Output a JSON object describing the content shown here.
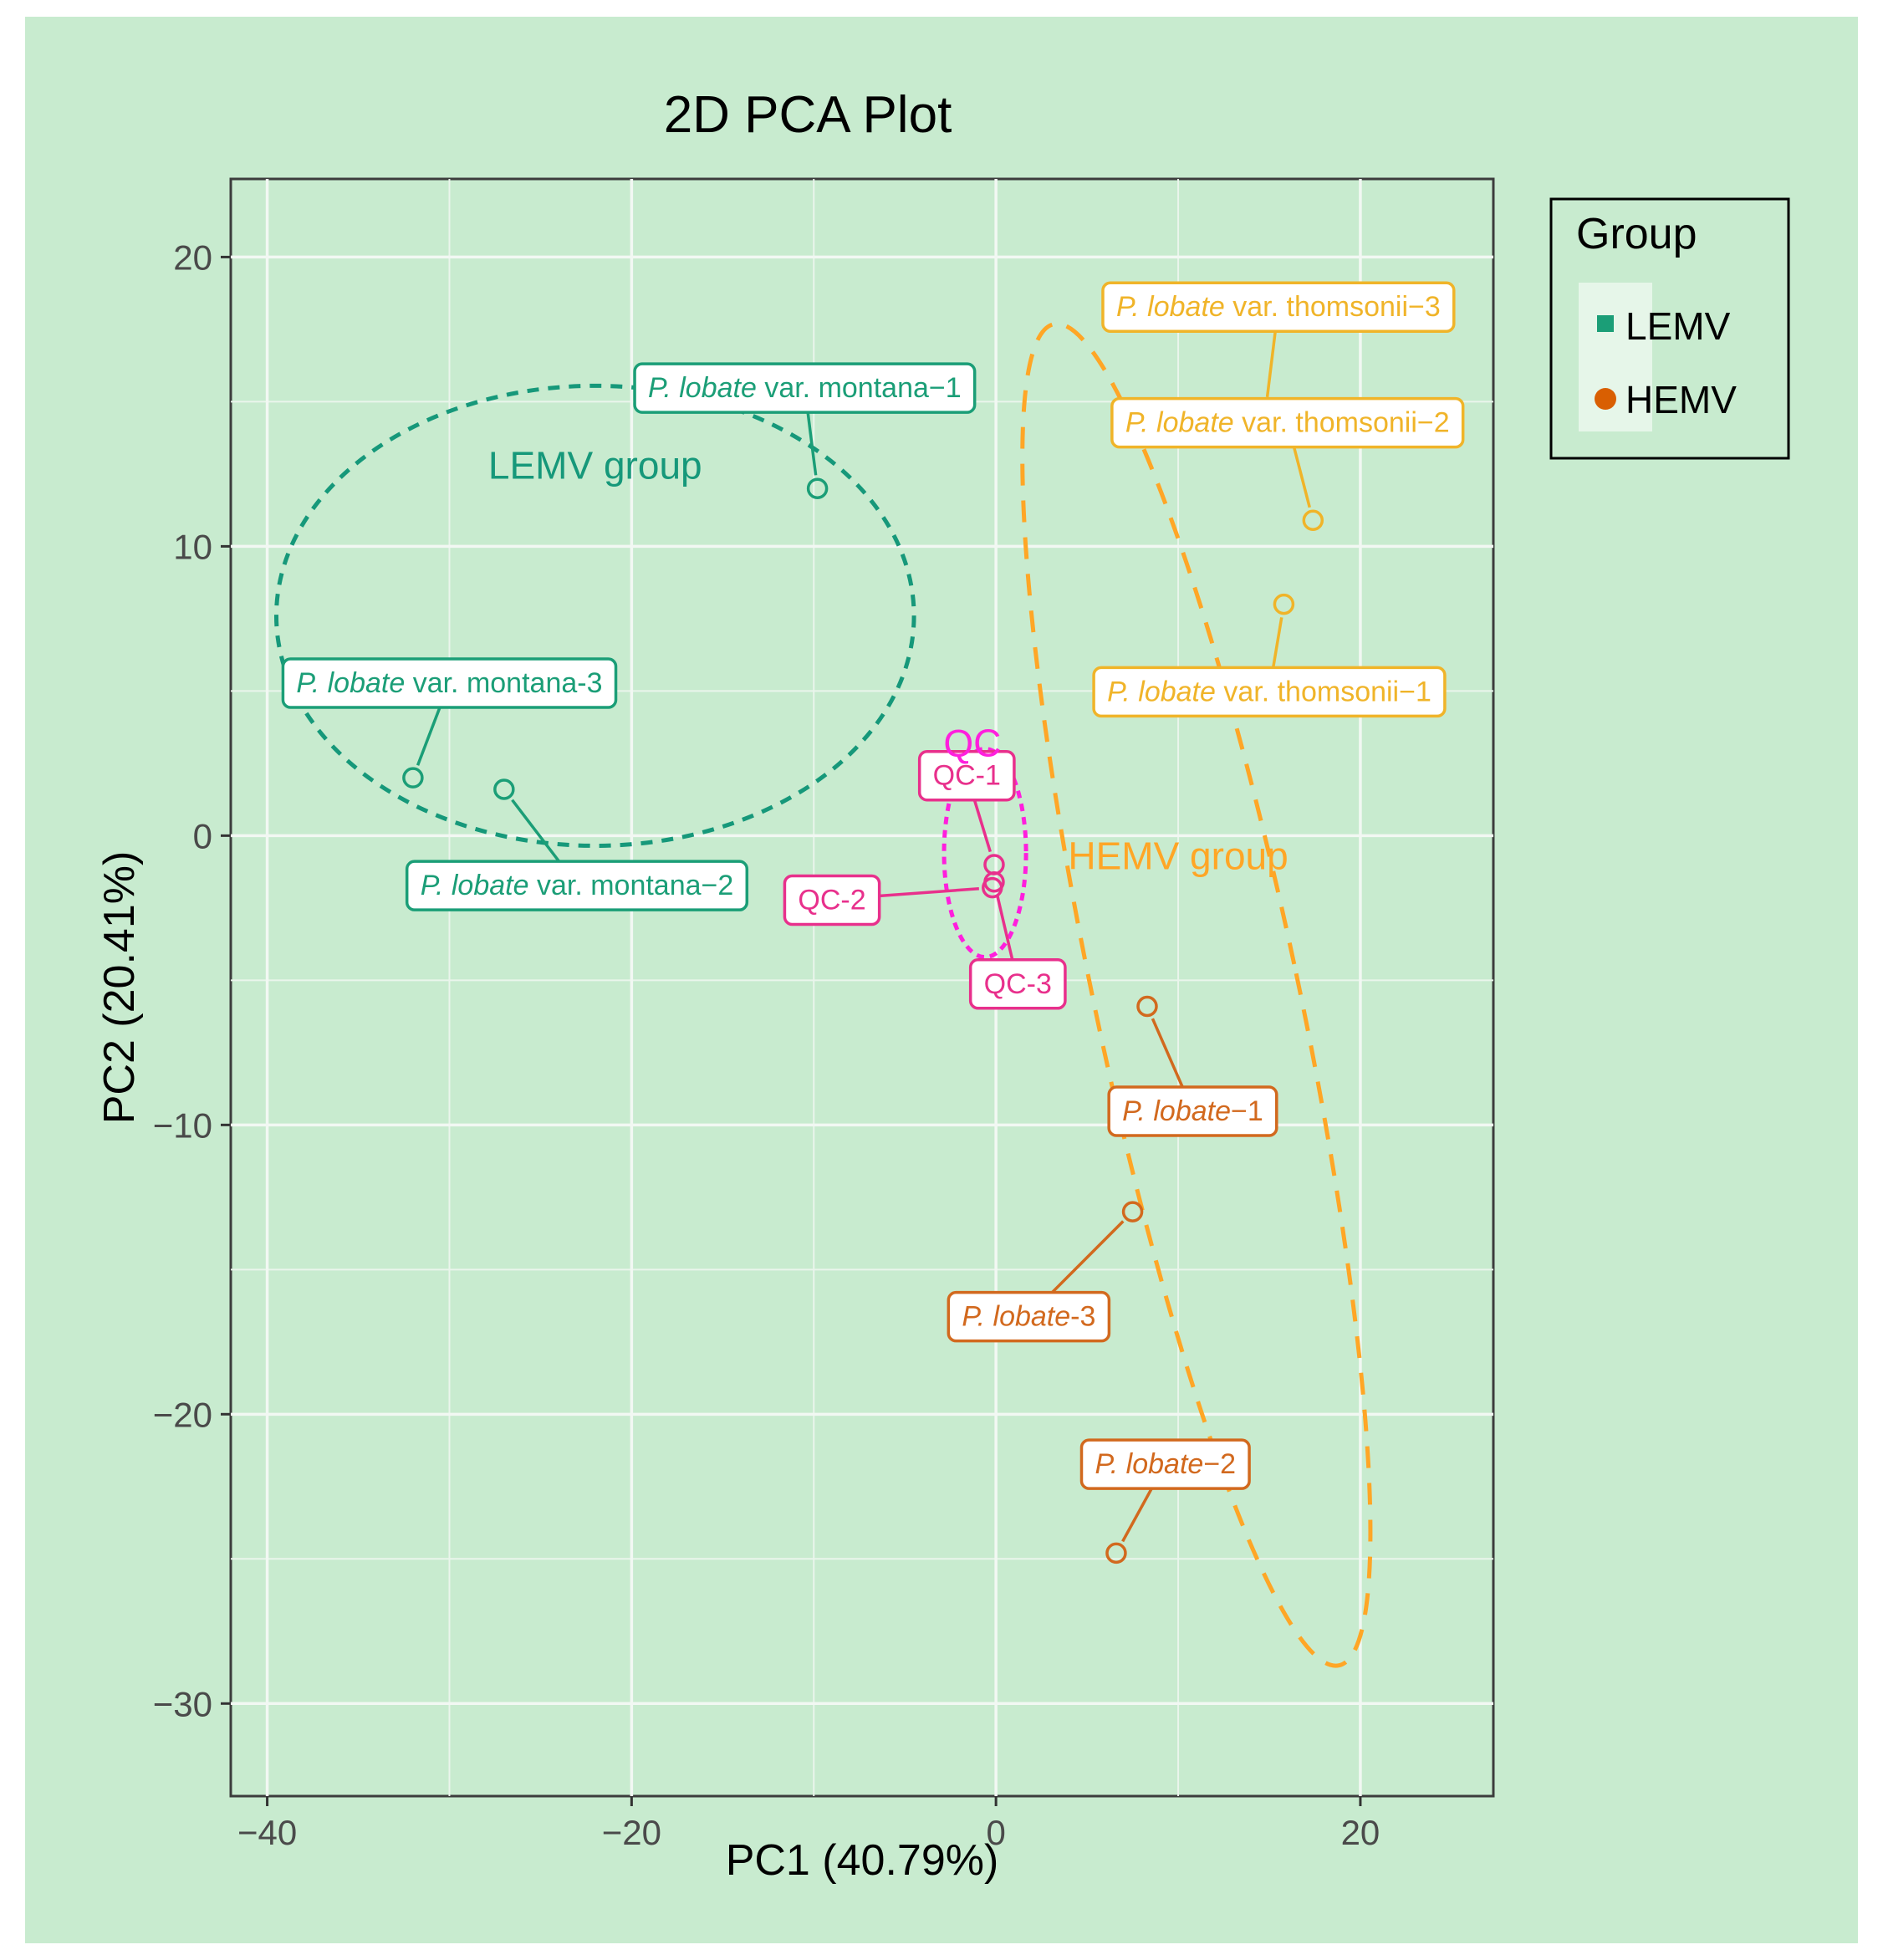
{
  "chart_data": {
    "type": "scatter",
    "title": "2D PCA Plot",
    "xlabel": "PC1 (40.79%)",
    "ylabel": "PC2 (20.41%)",
    "xlim": [
      -42,
      27.3
    ],
    "ylim": [
      -33.2,
      22.7
    ],
    "x_ticks": [
      -40,
      -20,
      0,
      20
    ],
    "x_tick_labels": [
      "−40",
      "−20",
      "0",
      "20"
    ],
    "y_ticks": [
      20,
      10,
      0,
      -10,
      -20,
      -30
    ],
    "y_tick_labels": [
      "20",
      "10",
      "0",
      "−10",
      "−20",
      "−30"
    ],
    "grid": true,
    "legend": {
      "title": "Group",
      "position": "right",
      "entries": [
        {
          "name": "LEMV",
          "color": "#1b9e77",
          "shape": "square"
        },
        {
          "name": "HEMV",
          "color": "#d95f02",
          "shape": "circle"
        }
      ]
    },
    "colors": {
      "lemv": "#1b9e77",
      "hemv_light": "#f0b429",
      "hemv_dark": "#d2691e",
      "qc": "#e8308c",
      "qc_ellipse": "#ff1fdd",
      "hemv_ellipse": "#ffa626",
      "lemv_ellipse": "#16987a"
    },
    "points": [
      {
        "id": "m1",
        "group": "LEMV",
        "x": -9.8,
        "y": 12.0,
        "label_prefix": "P. lobate",
        "label_suffix": " var. montana−1",
        "lx": -10.5,
        "ly": 15.5,
        "color": "#1b9e77"
      },
      {
        "id": "m2",
        "group": "LEMV",
        "x": -27.0,
        "y": 1.6,
        "label_prefix": "P. lobate",
        "label_suffix": " var. montana−2",
        "lx": -23.0,
        "ly": -1.7,
        "color": "#1b9e77"
      },
      {
        "id": "m3",
        "group": "LEMV",
        "x": -32.0,
        "y": 2.0,
        "label_prefix": "P. lobate",
        "label_suffix": " var. montana-3",
        "lx": -30.0,
        "ly": 5.3,
        "color": "#1b9e77"
      },
      {
        "id": "t1",
        "group": "HEMV",
        "x": 15.8,
        "y": 8.0,
        "label_prefix": "P. lobate",
        "label_suffix": " var. thomsonii−1",
        "lx": 15.0,
        "ly": 5.0,
        "color": "#f0b429"
      },
      {
        "id": "t2",
        "group": "HEMV",
        "x": 17.4,
        "y": 10.9,
        "label_prefix": "P. lobate",
        "label_suffix": " var. thomsonii−2",
        "lx": 16.0,
        "ly": 14.3,
        "color": "#f0b429"
      },
      {
        "id": "t3",
        "group": "HEMV",
        "x": 14.8,
        "y": 14.7,
        "label_prefix": "P. lobate",
        "label_suffix": " var. thomsonii−3",
        "lx": 15.5,
        "ly": 18.3,
        "color": "#f0b429"
      },
      {
        "id": "l1",
        "group": "HEMV",
        "x": 8.3,
        "y": -5.9,
        "label_prefix": "P. lobate",
        "label_suffix": "−1",
        "lx": 10.8,
        "ly": -9.5,
        "color": "#d2691e"
      },
      {
        "id": "l2",
        "group": "HEMV",
        "x": 6.6,
        "y": -24.8,
        "label_prefix": "P. lobate",
        "label_suffix": "−2",
        "lx": 9.3,
        "ly": -21.7,
        "color": "#d2691e"
      },
      {
        "id": "l3",
        "group": "HEMV",
        "x": 7.5,
        "y": -13.0,
        "label_prefix": "P. lobate",
        "label_suffix": "-3",
        "lx": 1.8,
        "ly": -16.6,
        "color": "#d2691e"
      },
      {
        "id": "q1",
        "group": "QC",
        "x": -0.1,
        "y": -1.0,
        "label_prefix": "",
        "label_suffix": "QC-1",
        "lx": -1.6,
        "ly": 2.1,
        "color": "#e8308c"
      },
      {
        "id": "q2",
        "group": "QC",
        "x": -0.2,
        "y": -1.8,
        "label_prefix": "",
        "label_suffix": "QC-2",
        "lx": -9.0,
        "ly": -2.2,
        "color": "#e8308c"
      },
      {
        "id": "q3",
        "group": "QC",
        "x": -0.1,
        "y": -1.6,
        "label_prefix": "",
        "label_suffix": "QC-3",
        "lx": 1.2,
        "ly": -5.1,
        "color": "#e8308c"
      }
    ],
    "ellipses": [
      {
        "name": "LEMV group",
        "cx": -22.0,
        "cy": 7.6,
        "rx": 17.5,
        "ry": 7.95,
        "rot": 0,
        "color": "#16987a",
        "dash": "14 11",
        "label_x": -22.0,
        "label_y": 12.8
      },
      {
        "name": "HEMV group",
        "cx": 11.0,
        "cy": -5.5,
        "rx": 5.6,
        "ry": 23.7,
        "rot": -12,
        "color": "#ffa626",
        "dash": "26 18",
        "label_x": 10.0,
        "label_y": -0.7
      },
      {
        "name": "QC",
        "cx": -0.6,
        "cy": -0.6,
        "rx": 2.25,
        "ry": 3.6,
        "rot": 0,
        "color": "#ff1fdd",
        "dash": "9 7",
        "label_x": -1.3,
        "label_y": 3.2
      }
    ]
  }
}
